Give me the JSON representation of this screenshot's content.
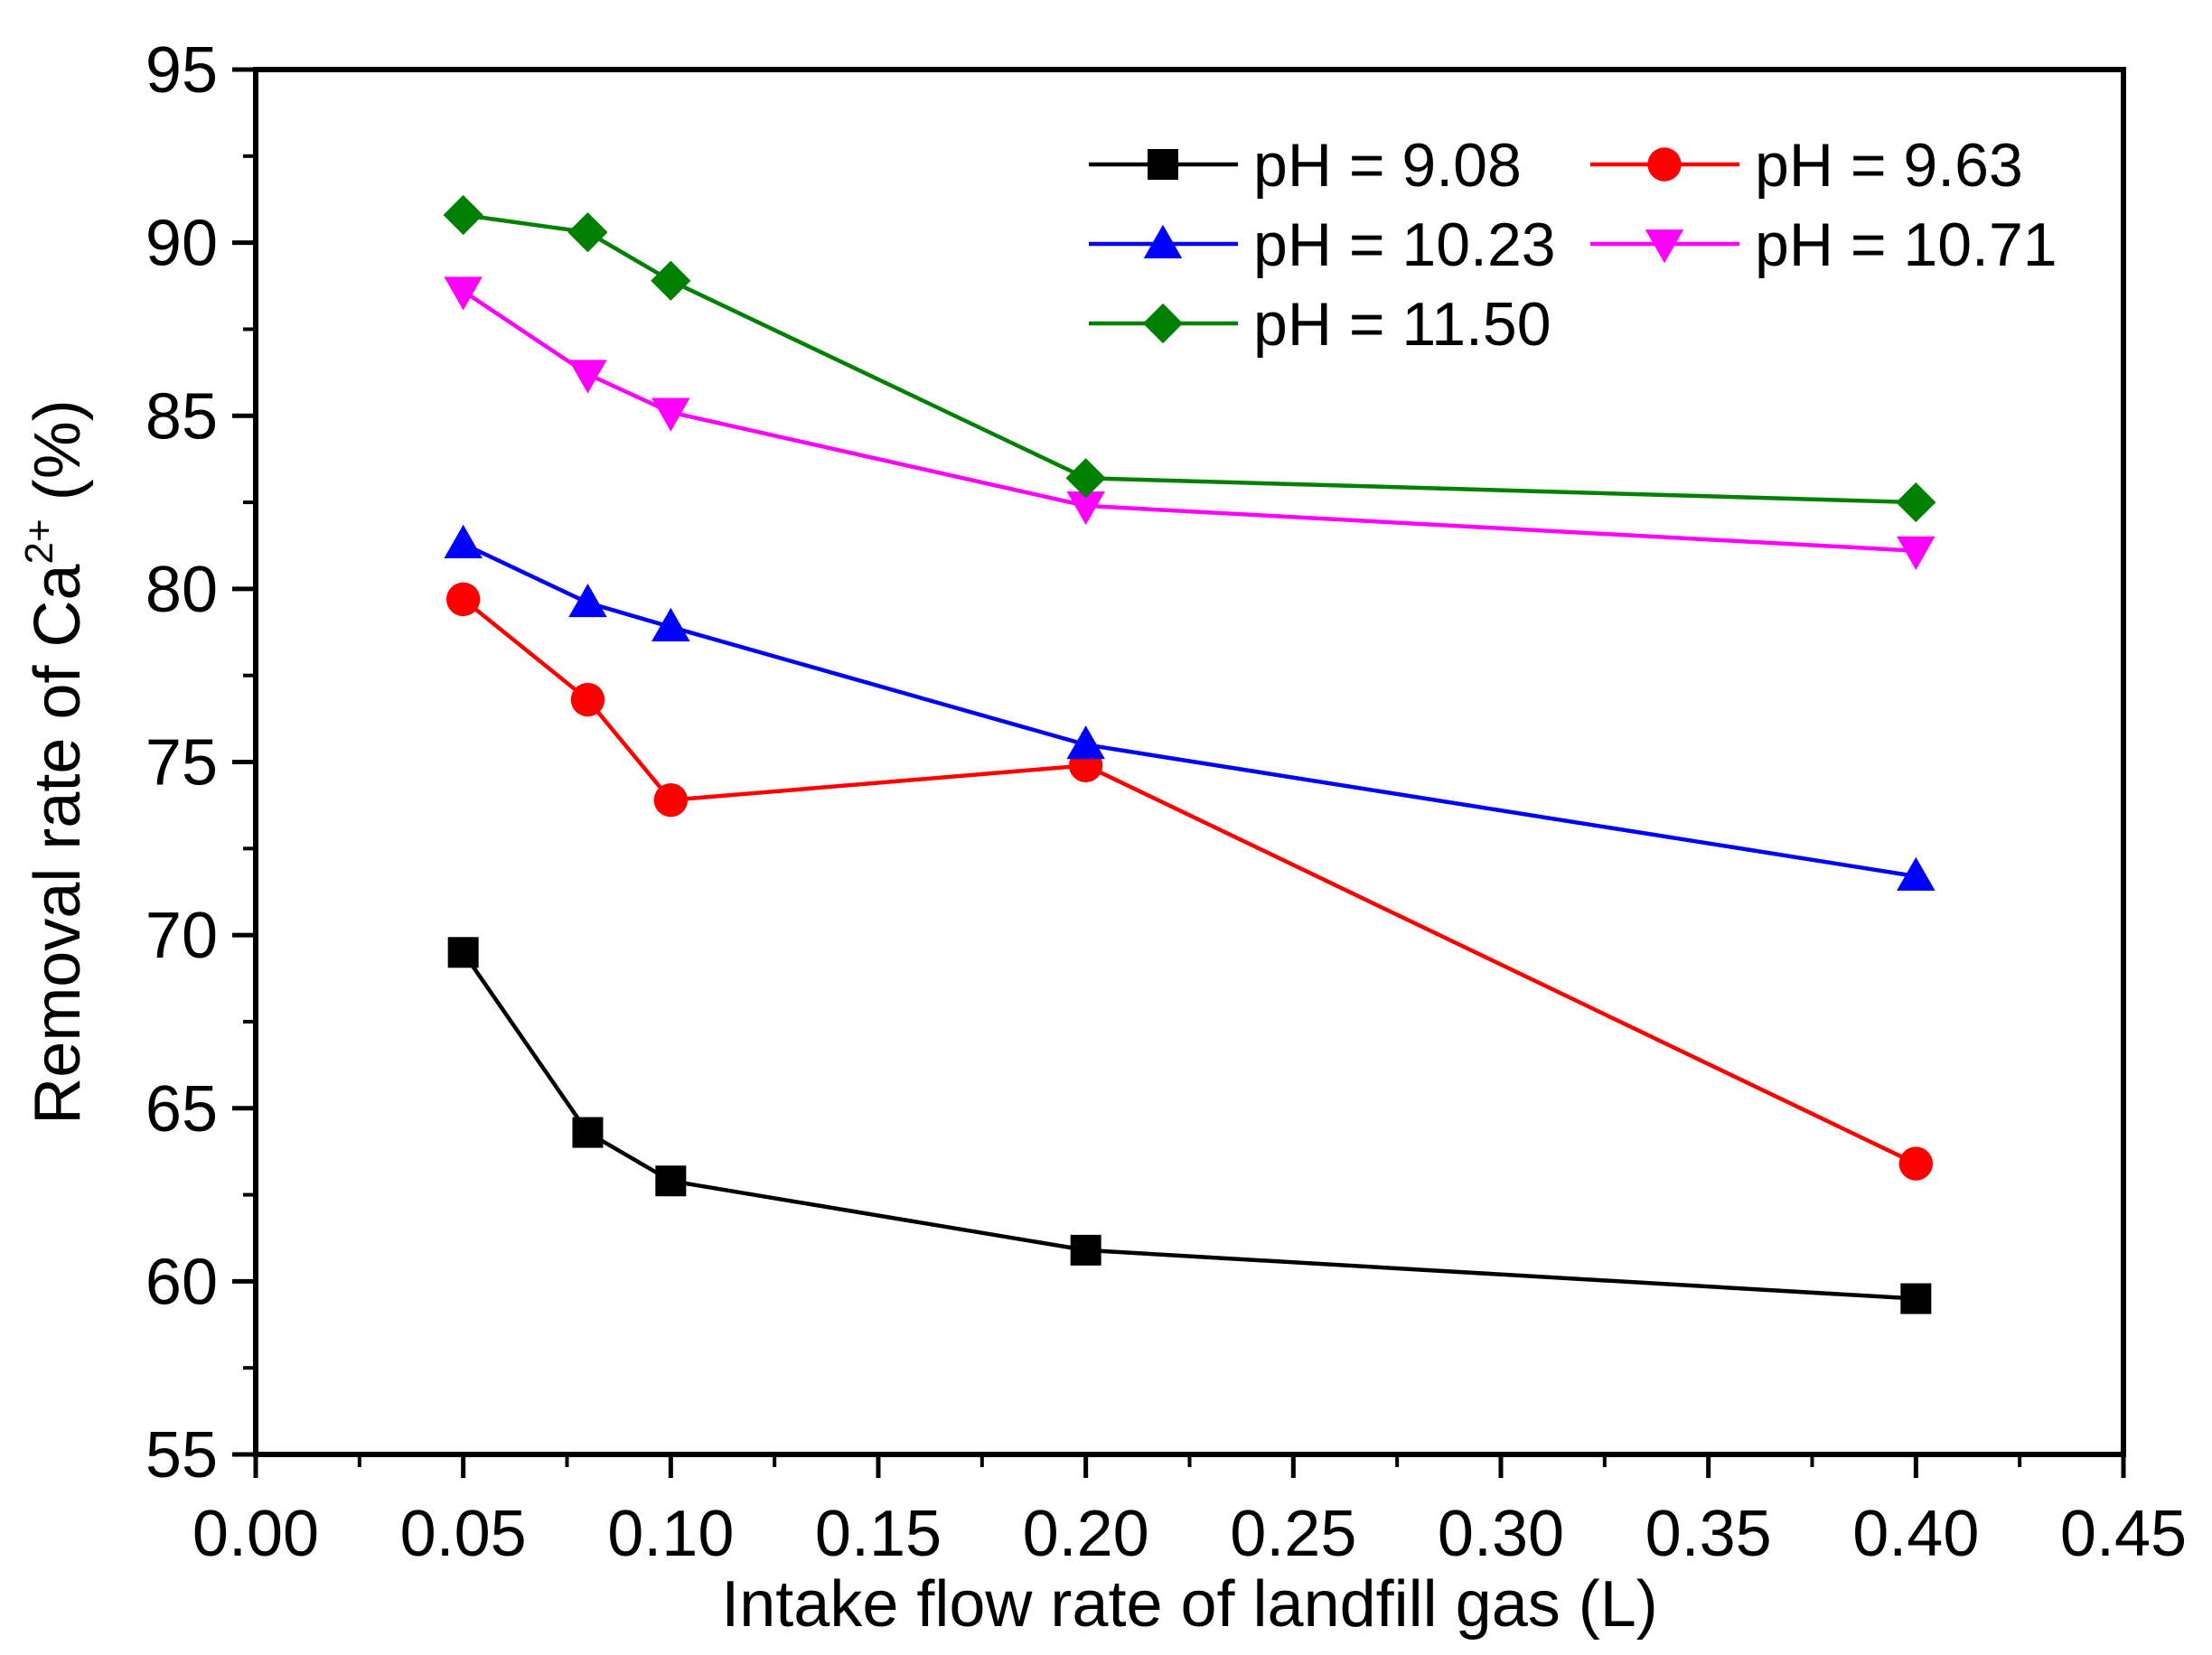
{
  "chart_data": {
    "type": "line",
    "title": "",
    "xlabel": "Intake flow rate of landfill gas (L)",
    "ylabel_main": "Removal rate of Ca",
    "ylabel_sup": "2+",
    "ylabel_unit": "(%)",
    "xlim": [
      0.0,
      0.45
    ],
    "ylim": [
      55,
      95
    ],
    "xticks": [
      "0.00",
      "0.05",
      "0.10",
      "0.15",
      "0.20",
      "0.25",
      "0.30",
      "0.35",
      "0.40",
      "0.45"
    ],
    "yticks": [
      "55",
      "60",
      "65",
      "70",
      "75",
      "80",
      "85",
      "90",
      "95"
    ],
    "x": [
      0.05,
      0.08,
      0.1,
      0.2,
      0.4
    ],
    "legend_position": "top-right",
    "series": [
      {
        "name": "pH = 9.08",
        "color": "#000000",
        "marker": "square",
        "values": [
          69.5,
          64.3,
          62.9,
          60.9,
          59.5
        ]
      },
      {
        "name": "pH = 9.63",
        "color": "#ff0000",
        "marker": "circle",
        "values": [
          79.7,
          76.8,
          73.9,
          74.9,
          63.4
        ]
      },
      {
        "name": "pH = 10.23",
        "color": "#0000ff",
        "marker": "triangle-up",
        "values": [
          81.3,
          79.6,
          78.9,
          75.5,
          71.7
        ]
      },
      {
        "name": "pH = 10.71",
        "color": "#ff00ff",
        "marker": "triangle-down",
        "values": [
          88.6,
          86.2,
          85.1,
          82.4,
          81.1
        ]
      },
      {
        "name": "pH = 11.50",
        "color": "#008000",
        "marker": "diamond",
        "values": [
          90.8,
          90.3,
          88.9,
          83.2,
          82.5
        ]
      }
    ]
  }
}
